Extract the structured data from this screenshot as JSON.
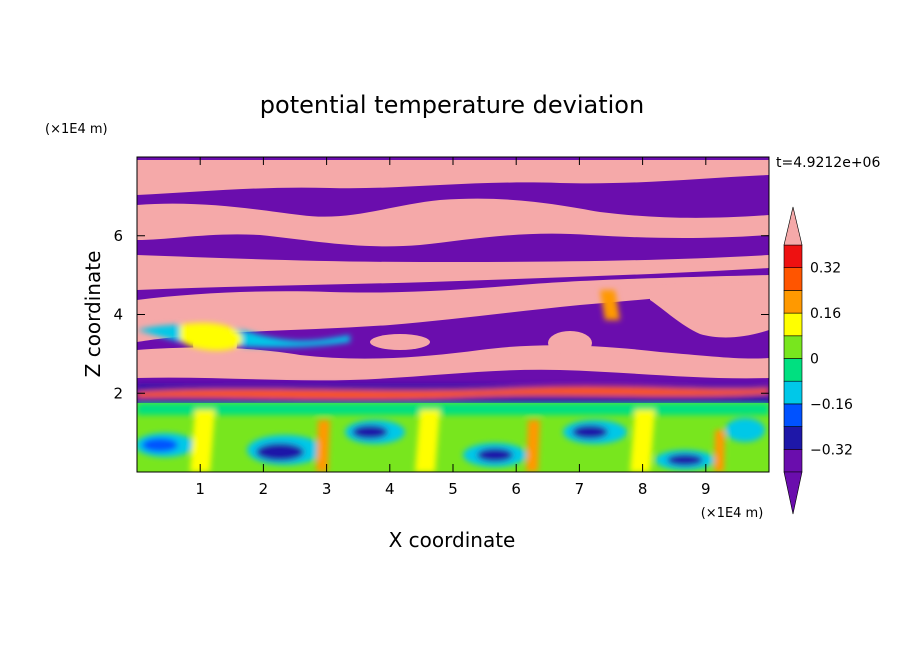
{
  "chart_data": {
    "type": "heatmap",
    "title": "potential temperature deviation",
    "xlabel": "X coordinate",
    "ylabel": "Z coordinate",
    "x_unit": "(×1E4 m)",
    "y_unit": "(×1E4 m)",
    "time_label": "t=4.9212e+06",
    "xlim": [
      0,
      10
    ],
    "ylim": [
      0,
      8
    ],
    "x_ticks": [
      "1",
      "2",
      "3",
      "4",
      "5",
      "6",
      "7",
      "8",
      "9"
    ],
    "y_ticks": [
      "2",
      "4",
      "6"
    ],
    "colorbar": {
      "levels": [
        -0.4,
        -0.32,
        -0.24,
        -0.16,
        -0.08,
        0,
        0.08,
        0.16,
        0.24,
        0.32,
        0.4
      ],
      "tick_labels": [
        "0.32",
        "0.16",
        "0",
        "−0.16",
        "−0.32"
      ],
      "colors": [
        "#6a0dad",
        "#1e17a8",
        "#0052ff",
        "#00c8e8",
        "#00e080",
        "#78e61e",
        "#ffff00",
        "#ff9900",
        "#ff5500",
        "#ee1111"
      ],
      "over_color": "#f5a9a9",
      "under_color": "#6a0dad"
    }
  }
}
